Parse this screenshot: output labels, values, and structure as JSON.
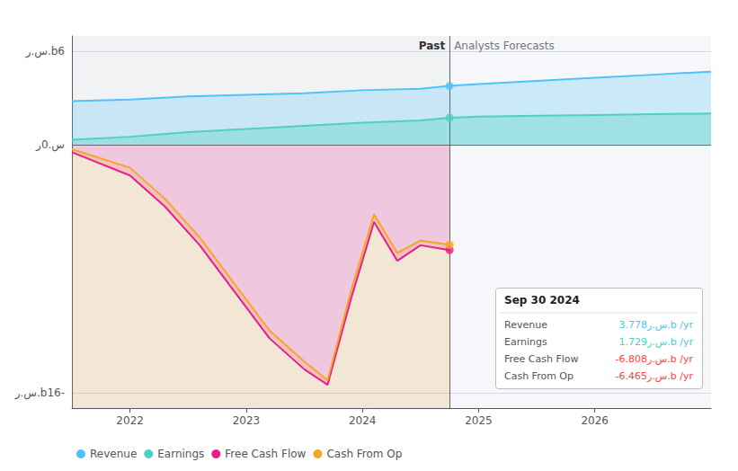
{
  "chart_data": {
    "type": "line",
    "legend": "lower left",
    "grid": true,
    "xlim": [
      2021.5,
      2027.0
    ],
    "xticks": [
      2022,
      2023,
      2024,
      2025,
      2026
    ],
    "ylim": [
      -17,
      7
    ],
    "yticks": [
      {
        "value": 6,
        "label": "س.ر.b6"
      },
      {
        "value": 0,
        "label": "س.0ر"
      },
      {
        "value": -16,
        "label": "س.ر.b16-"
      }
    ],
    "divider_x": 2024.75,
    "past_label": "Past",
    "forecast_label": "Analysts Forecasts",
    "series": [
      {
        "name": "Revenue",
        "color": "#4fc3f7",
        "x": [
          2021.5,
          2022.0,
          2022.5,
          2023.0,
          2023.5,
          2024.0,
          2024.5,
          2024.75,
          2025.0,
          2025.5,
          2026.0,
          2026.5,
          2027.0
        ],
        "values": [
          2.8,
          2.9,
          3.1,
          3.2,
          3.3,
          3.5,
          3.6,
          3.778,
          3.9,
          4.1,
          4.3,
          4.5,
          4.7
        ],
        "dot": {
          "x": 2024.75,
          "y": 3.778
        }
      },
      {
        "name": "Earnings",
        "color": "#4dd0c4",
        "x": [
          2021.5,
          2022.0,
          2022.5,
          2023.0,
          2023.5,
          2024.0,
          2024.5,
          2024.75,
          2025.0,
          2025.5,
          2026.0,
          2026.5,
          2027.0
        ],
        "values": [
          0.3,
          0.5,
          0.8,
          1.0,
          1.2,
          1.4,
          1.55,
          1.729,
          1.8,
          1.85,
          1.9,
          1.95,
          2.0
        ],
        "dot": {
          "x": 2024.75,
          "y": 1.729
        }
      },
      {
        "name": "Free Cash Flow",
        "color": "#e91e8c",
        "x": [
          2021.5,
          2022.0,
          2022.3,
          2022.6,
          2022.9,
          2023.2,
          2023.5,
          2023.7,
          2023.9,
          2024.1,
          2024.3,
          2024.5,
          2024.75
        ],
        "values": [
          -0.5,
          -2.0,
          -4.0,
          -6.5,
          -9.5,
          -12.5,
          -14.5,
          -15.5,
          -10.0,
          -5.0,
          -7.5,
          -6.5,
          -6.808
        ],
        "dot": {
          "x": 2024.75,
          "y": -6.808
        }
      },
      {
        "name": "Cash From Op",
        "color": "#f5a623",
        "x": [
          2021.5,
          2022.0,
          2022.3,
          2022.6,
          2022.9,
          2023.2,
          2023.5,
          2023.7,
          2023.9,
          2024.1,
          2024.3,
          2024.5,
          2024.75
        ],
        "values": [
          -0.3,
          -1.5,
          -3.5,
          -6.0,
          -9.0,
          -12.0,
          -14.0,
          -15.2,
          -9.5,
          -4.5,
          -7.0,
          -6.2,
          -6.465
        ],
        "dot": {
          "x": 2024.75,
          "y": -6.465
        }
      }
    ],
    "tooltip": {
      "title": "Sep 30 2024",
      "rows": [
        {
          "label": "Revenue",
          "value": "3.778س.ر.b /yr",
          "color": "#4fc3f7"
        },
        {
          "label": "Earnings",
          "value": "1.729س.ر.b /yr",
          "color": "#4dd0c4"
        },
        {
          "label": "Free Cash Flow",
          "value": "-6.808س.ر.b /yr",
          "color": "#ff4444"
        },
        {
          "label": "Cash From Op",
          "value": "-6.465س.ر.b /yr",
          "color": "#ff4444"
        }
      ]
    }
  }
}
